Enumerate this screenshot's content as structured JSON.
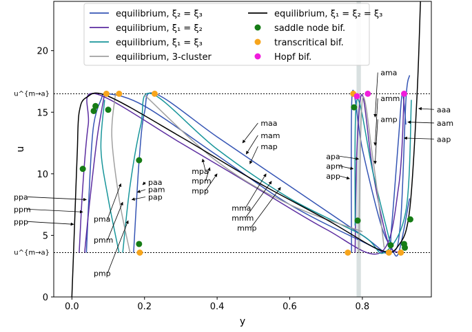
{
  "chart_data": {
    "type": "line",
    "xlabel": "y",
    "ylabel": "u",
    "xlim": [
      -0.05,
      0.99
    ],
    "ylim": [
      0,
      24
    ],
    "xticks": [
      {
        "v": 0.0,
        "label": "0.0"
      },
      {
        "v": 0.2,
        "label": "0.2"
      },
      {
        "v": 0.4,
        "label": "0.4"
      },
      {
        "v": 0.6,
        "label": "0.6"
      },
      {
        "v": 0.8,
        "label": "0.8"
      }
    ],
    "yticks": [
      {
        "v": 0,
        "label": "0"
      },
      {
        "v": 5,
        "label": "5"
      },
      {
        "v": 10,
        "label": "10"
      },
      {
        "v": 15,
        "label": "15"
      },
      {
        "v": 20,
        "label": "20"
      }
    ],
    "grid": false,
    "legend_placement": "top-center",
    "hlines": [
      {
        "y": 16.5,
        "label": "u^{m→a}",
        "style": "dotted"
      },
      {
        "y": 3.6,
        "label": "u^{m→a}",
        "style": "dotted"
      }
    ],
    "vband": {
      "x": 0.79,
      "halfwidth": 0.006,
      "color": "#cfd8d8"
    },
    "series": [
      {
        "name": "equilibrium, ξ₂ = ξ₃",
        "color": "#3454b4",
        "kind": "line",
        "curves": [
          [
            [
              0.04,
              3.6
            ],
            [
              0.05,
              10
            ],
            [
              0.06,
              14
            ],
            [
              0.08,
              16
            ],
            [
              0.1,
              16.5
            ],
            [
              0.2,
              15.5
            ],
            [
              0.4,
              11.5
            ],
            [
              0.6,
              7.5
            ],
            [
              0.8,
              4.5
            ],
            [
              0.88,
              3.6
            ],
            [
              0.905,
              6
            ],
            [
              0.92,
              16
            ],
            [
              0.93,
              18
            ]
          ],
          [
            [
              0.17,
              3.6
            ],
            [
              0.185,
              11
            ],
            [
              0.2,
              15
            ],
            [
              0.23,
              16.5
            ],
            [
              0.4,
              13
            ],
            [
              0.6,
              9
            ],
            [
              0.8,
              5
            ],
            [
              0.87,
              3.6
            ],
            [
              0.88,
              5.5
            ],
            [
              0.9,
              13
            ],
            [
              0.91,
              16.5
            ],
            [
              0.92,
              14
            ]
          ],
          [
            [
              0.77,
              3.6
            ],
            [
              0.772,
              16.5
            ],
            [
              0.8,
              12
            ],
            [
              0.85,
              6
            ],
            [
              0.88,
              4
            ],
            [
              0.9,
              3.6
            ],
            [
              0.93,
              8
            ]
          ]
        ]
      },
      {
        "name": "equilibrium, ξ₁ = ξ₂",
        "color": "#5b2ca0",
        "kind": "line",
        "curves": [
          [
            [
              0.02,
              3.6
            ],
            [
              0.03,
              9
            ],
            [
              0.045,
              14
            ],
            [
              0.065,
              16.5
            ],
            [
              0.3,
              12.5
            ],
            [
              0.5,
              9
            ],
            [
              0.7,
              5.5
            ],
            [
              0.85,
              3.6
            ],
            [
              0.9,
              9
            ],
            [
              0.915,
              16.5
            ]
          ],
          [
            [
              0.035,
              3.6
            ],
            [
              0.05,
              8
            ],
            [
              0.07,
              13
            ],
            [
              0.09,
              16.5
            ]
          ],
          [
            [
              0.78,
              3.6
            ],
            [
              0.785,
              12
            ],
            [
              0.8,
              16.4
            ],
            [
              0.83,
              10
            ],
            [
              0.87,
              4.5
            ],
            [
              0.9,
              3.6
            ]
          ]
        ]
      },
      {
        "name": "equilibrium, ξ₁ = ξ₃",
        "color": "#17959a",
        "kind": "line",
        "curves": [
          [
            [
              0.14,
              3.6
            ],
            [
              0.16,
              9
            ],
            [
              0.19,
              14
            ],
            [
              0.22,
              16.5
            ],
            [
              0.4,
              12
            ],
            [
              0.6,
              8
            ],
            [
              0.8,
              5
            ],
            [
              0.86,
              3.6
            ],
            [
              0.92,
              7
            ],
            [
              0.935,
              16
            ]
          ],
          [
            [
              0.13,
              3.6
            ],
            [
              0.1,
              8
            ],
            [
              0.08,
              12
            ],
            [
              0.09,
              16
            ]
          ],
          [
            [
              0.78,
              5.8
            ],
            [
              0.785,
              16
            ],
            [
              0.83,
              10
            ],
            [
              0.88,
              4
            ]
          ]
        ]
      },
      {
        "name": "equilibrium, 3-cluster",
        "color": "#a0a0a0",
        "kind": "line",
        "curves": [
          [
            [
              0.16,
              3.6
            ],
            [
              0.13,
              8
            ],
            [
              0.11,
              13
            ],
            [
              0.12,
              16.5
            ]
          ],
          [
            [
              0.2,
              16.4
            ],
            [
              0.4,
              11
            ],
            [
              0.6,
              7.5
            ],
            [
              0.8,
              5.3
            ]
          ],
          [
            [
              0.79,
              3.6
            ],
            [
              0.8,
              16
            ],
            [
              0.83,
              11
            ],
            [
              0.86,
              4
            ]
          ]
        ]
      },
      {
        "name": "equilibrium, ξ₁ = ξ₂ = ξ₃",
        "color": "#000000",
        "kind": "line",
        "curves": [
          [
            [
              0.0,
              0
            ],
            [
              0.005,
              4
            ],
            [
              0.01,
              8
            ],
            [
              0.015,
              12
            ],
            [
              0.02,
              15
            ],
            [
              0.04,
              16.2
            ],
            [
              0.1,
              16.3
            ],
            [
              0.3,
              13
            ],
            [
              0.5,
              9.5
            ],
            [
              0.7,
              6.3
            ],
            [
              0.85,
              3.8
            ],
            [
              0.9,
              4.2
            ],
            [
              0.93,
              7
            ],
            [
              0.95,
              16
            ],
            [
              0.96,
              24
            ]
          ]
        ]
      },
      {
        "name": "saddle node bif.",
        "color": "#167c16",
        "kind": "points",
        "points": [
          [
            0.03,
            10.4
          ],
          [
            0.065,
            15.5
          ],
          [
            0.06,
            15.1
          ],
          [
            0.1,
            15.2
          ],
          [
            0.185,
            11.1
          ],
          [
            0.185,
            4.3
          ],
          [
            0.777,
            15.4
          ],
          [
            0.787,
            6.2
          ],
          [
            0.878,
            4.2
          ],
          [
            0.915,
            4.3
          ],
          [
            0.917,
            4.0
          ],
          [
            0.932,
            6.3
          ]
        ]
      },
      {
        "name": "transcritical bif.",
        "color": "#f7a51c",
        "kind": "points",
        "points": [
          [
            0.095,
            16.5
          ],
          [
            0.13,
            16.5
          ],
          [
            0.228,
            16.5
          ],
          [
            0.187,
            3.6
          ],
          [
            0.775,
            16.5
          ],
          [
            0.76,
            3.6
          ],
          [
            0.873,
            3.6
          ],
          [
            0.906,
            3.6
          ]
        ]
      },
      {
        "name": "Hopf bif.",
        "color": "#f01cdc",
        "kind": "points",
        "points": [
          [
            0.785,
            16.3
          ],
          [
            0.815,
            16.5
          ],
          [
            0.915,
            16.5
          ]
        ]
      }
    ],
    "annotations": [
      {
        "text": "ama",
        "x": 0.85,
        "y": 18.0,
        "ax": 0.835,
        "ay": 14.6
      },
      {
        "text": "amm",
        "x": 0.85,
        "y": 15.9,
        "ax": 0.835,
        "ay": 12.3
      },
      {
        "text": "amp",
        "x": 0.85,
        "y": 14.2,
        "ax": 0.835,
        "ay": 10.8
      },
      {
        "text": "aaa",
        "x": 1.005,
        "y": 15.0,
        "ax": 0.955,
        "ay": 15.3
      },
      {
        "text": "aam",
        "x": 1.005,
        "y": 13.9,
        "ax": 0.925,
        "ay": 14.2
      },
      {
        "text": "aap",
        "x": 1.005,
        "y": 12.6,
        "ax": 0.915,
        "ay": 12.9
      },
      {
        "text": "maa",
        "x": 0.52,
        "y": 13.9,
        "ax": 0.47,
        "ay": 12.5
      },
      {
        "text": "mam",
        "x": 0.52,
        "y": 12.9,
        "ax": 0.48,
        "ay": 11.6
      },
      {
        "text": "map",
        "x": 0.52,
        "y": 12.0,
        "ax": 0.49,
        "ay": 10.8
      },
      {
        "text": "mpa",
        "x": 0.33,
        "y": 10.0,
        "ax": 0.36,
        "ay": 11.2
      },
      {
        "text": "mpm",
        "x": 0.33,
        "y": 9.2,
        "ax": 0.38,
        "ay": 10.5
      },
      {
        "text": "mpp",
        "x": 0.33,
        "y": 8.4,
        "ax": 0.4,
        "ay": 10.0
      },
      {
        "text": "mma",
        "x": 0.44,
        "y": 7.0,
        "ax": 0.535,
        "ay": 10.0
      },
      {
        "text": "mmm",
        "x": 0.44,
        "y": 6.2,
        "ax": 0.55,
        "ay": 9.4
      },
      {
        "text": "mmp",
        "x": 0.455,
        "y": 5.4,
        "ax": 0.575,
        "ay": 8.9
      },
      {
        "text": "apa",
        "x": 0.7,
        "y": 11.2,
        "ax": 0.79,
        "ay": 11.2
      },
      {
        "text": "apm",
        "x": 0.7,
        "y": 10.4,
        "ax": 0.775,
        "ay": 10.4
      },
      {
        "text": "app",
        "x": 0.7,
        "y": 9.6,
        "ax": 0.765,
        "ay": 9.6
      },
      {
        "text": "paa",
        "x": 0.21,
        "y": 9.1,
        "ax": 0.195,
        "ay": 9.1
      },
      {
        "text": "pam",
        "x": 0.21,
        "y": 8.5,
        "ax": 0.18,
        "ay": 8.5
      },
      {
        "text": "pap",
        "x": 0.21,
        "y": 7.9,
        "ax": 0.165,
        "ay": 7.9
      },
      {
        "text": "pma",
        "x": 0.06,
        "y": 6.1,
        "ax": 0.135,
        "ay": 9.2
      },
      {
        "text": "pmm",
        "x": 0.06,
        "y": 4.4,
        "ax": 0.14,
        "ay": 7.7
      },
      {
        "text": "pmp",
        "x": 0.06,
        "y": 1.7,
        "ax": 0.155,
        "ay": 6.2
      },
      {
        "text": "ppa",
        "x": -0.16,
        "y": 7.9,
        "ax": 0.04,
        "ay": 7.9
      },
      {
        "text": "ppm",
        "x": -0.16,
        "y": 6.9,
        "ax": 0.03,
        "ay": 6.9
      },
      {
        "text": "ppp",
        "x": -0.16,
        "y": 5.9,
        "ax": 0.005,
        "ay": 5.9
      }
    ]
  }
}
